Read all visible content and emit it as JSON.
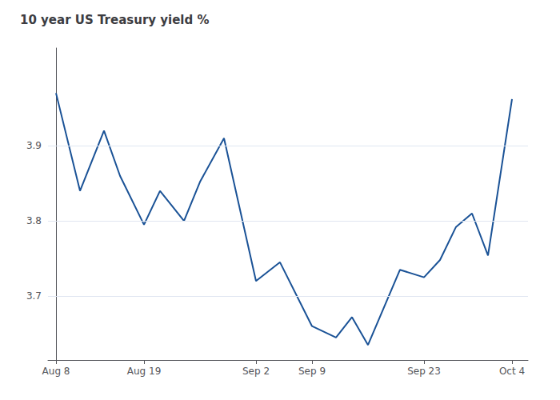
{
  "chart_data": {
    "type": "line",
    "title": "10 year US Treasury yield %",
    "x": [
      0,
      3,
      6,
      8,
      11,
      13,
      16,
      18,
      21,
      25,
      28,
      32,
      35,
      37,
      39,
      43,
      46,
      48,
      50,
      52,
      54,
      57
    ],
    "values": [
      3.97,
      3.84,
      3.92,
      3.86,
      3.795,
      3.84,
      3.8,
      3.852,
      3.91,
      3.72,
      3.745,
      3.66,
      3.645,
      3.672,
      3.635,
      3.735,
      3.725,
      3.748,
      3.792,
      3.81,
      3.754,
      3.962
    ],
    "color": "#1a5296",
    "xlim": [
      -1,
      59
    ],
    "xticks": [
      {
        "value": 0,
        "label": "Aug 8"
      },
      {
        "value": 11,
        "label": "Aug 19"
      },
      {
        "value": 25,
        "label": "Sep 2"
      },
      {
        "value": 32,
        "label": "Sep 9"
      },
      {
        "value": 46,
        "label": "Sep 23"
      },
      {
        "value": 57,
        "label": "Oct 4"
      }
    ],
    "ylim": [
      3.615,
      4.03
    ],
    "yticks": [
      3.7,
      3.8,
      3.9
    ],
    "grid": true
  }
}
